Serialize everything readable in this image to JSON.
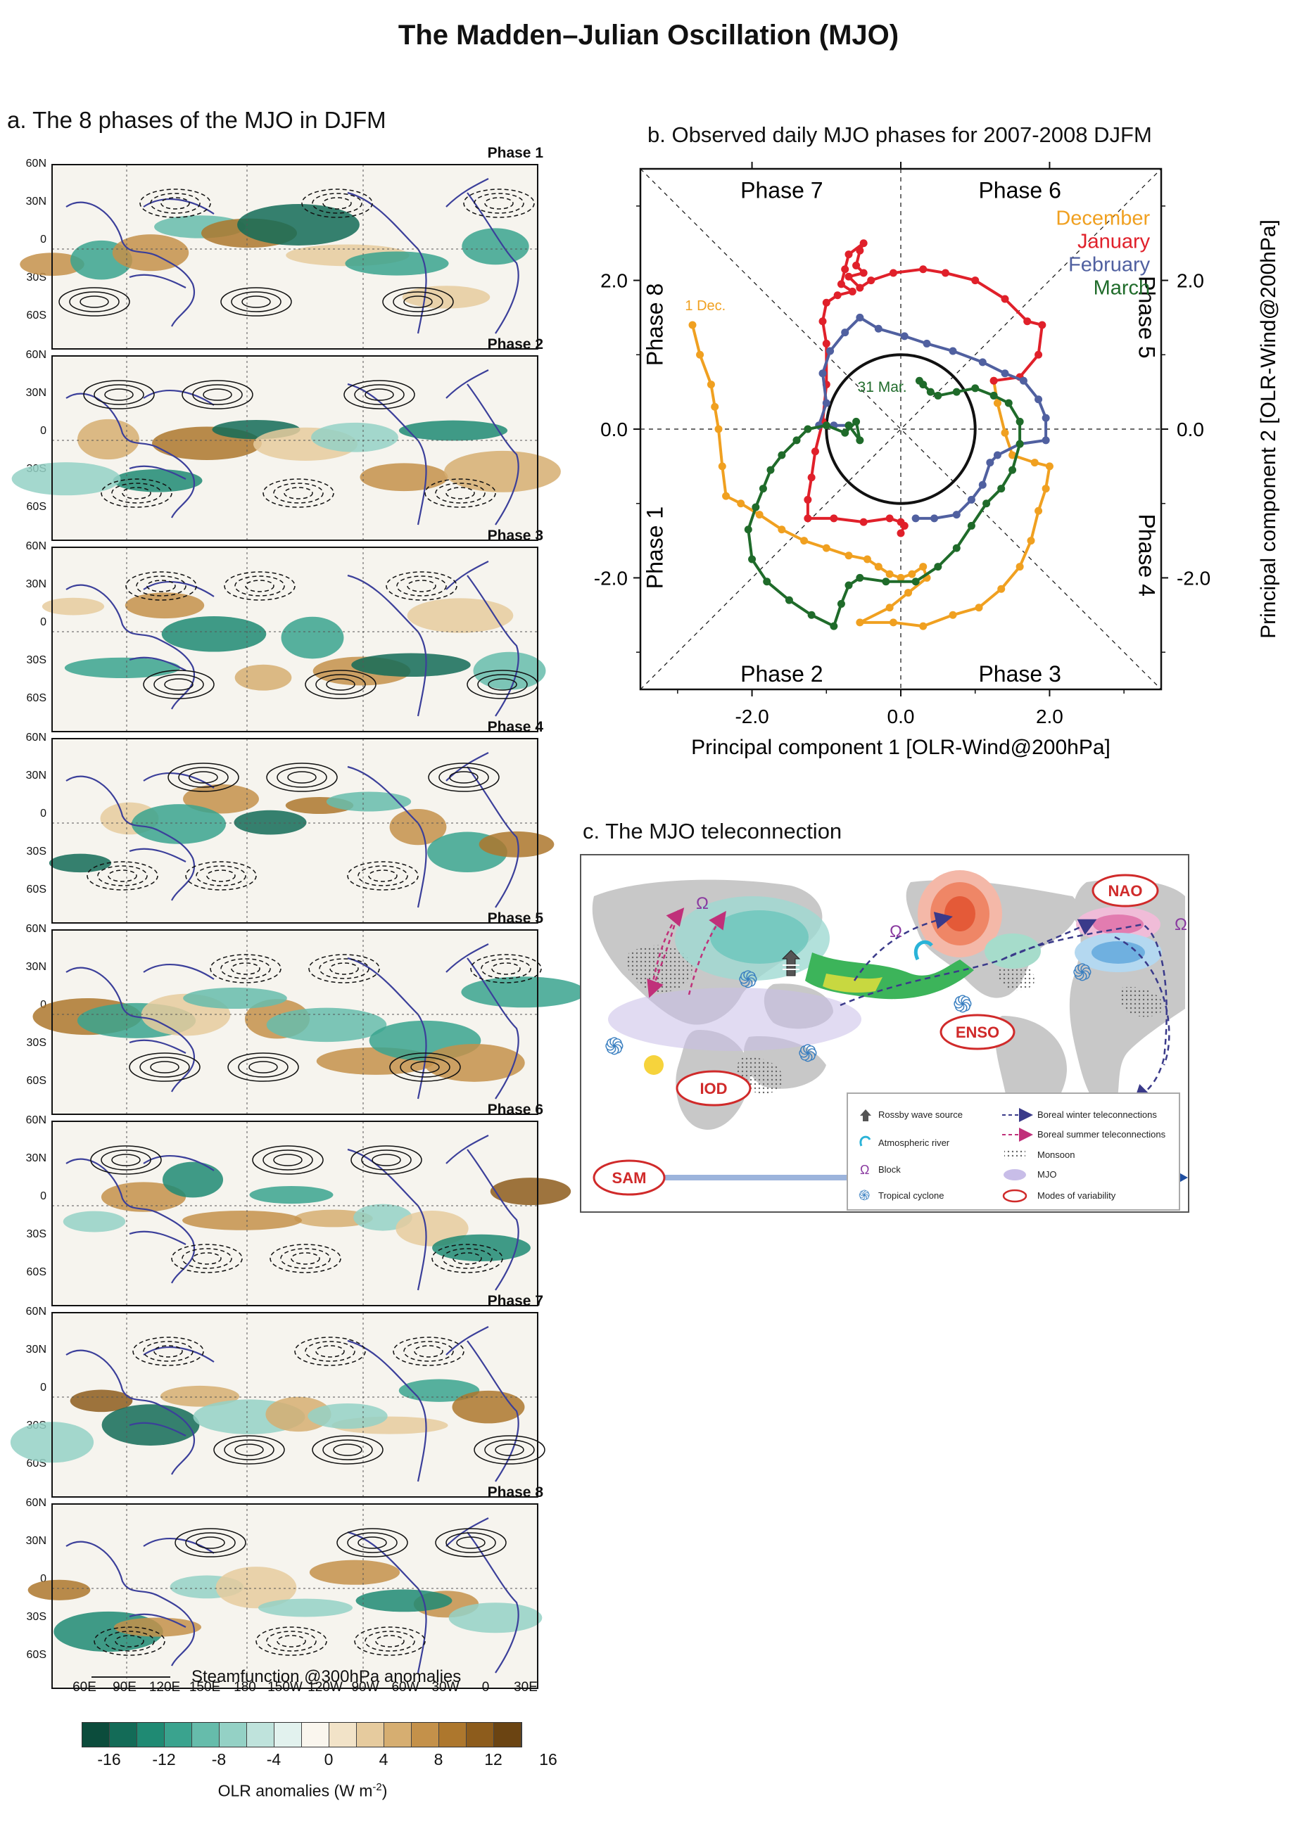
{
  "title": "The Madden–Julian Oscillation (MJO)",
  "panel_a": {
    "title": "a. The 8 phases of the MJO in DJFM",
    "phases": [
      "Phase 1",
      "Phase 2",
      "Phase 3",
      "Phase 4",
      "Phase 5",
      "Phase 6",
      "Phase 7",
      "Phase 8"
    ],
    "lat_labels": [
      "60N",
      "30N",
      "0",
      "30S",
      "60S"
    ],
    "lon_labels": [
      "60E",
      "90E",
      "120E",
      "150E",
      "180",
      "150W",
      "120W",
      "90W",
      "60W",
      "30W",
      "0",
      "30E"
    ],
    "contour_legend": "Steamfunction @300hPa anomalies",
    "colorbar": {
      "ticks": [
        "-16",
        "-12",
        "-8",
        "-4",
        "0",
        "4",
        "8",
        "12",
        "16"
      ],
      "label": "OLR anomalies (W m",
      "label_sup": "-2",
      "label_end": ")",
      "colors": [
        "#0c4c3c",
        "#136b57",
        "#1f8a73",
        "#3aa38e",
        "#66bcab",
        "#94d1c5",
        "#bfe3dc",
        "#e2f2ee",
        "#faf6ee",
        "#f2e3c8",
        "#e6cb9e",
        "#d6ae71",
        "#c4914a",
        "#ad772d",
        "#8d5c1c",
        "#6b4412"
      ]
    }
  },
  "chart_data": {
    "type": "line",
    "title": "b. Observed daily MJO phases for 2007-2008 DJFM",
    "xlabel": "Principal component 1 [OLR-Wind@200hPa]",
    "ylabel": "Principal component 2 [OLR-Wind@200hPa]",
    "xlim": [
      -3.5,
      3.5
    ],
    "ylim": [
      -3.5,
      3.5
    ],
    "xticks": [
      "-2.0",
      "0.0",
      "2.0"
    ],
    "yticks": [
      "-2.0",
      "0.0",
      "2.0"
    ],
    "phase_labels": [
      "Phase 1",
      "Phase 2",
      "Phase 3",
      "Phase 4",
      "Phase 5",
      "Phase 6",
      "Phase 7",
      "Phase 8"
    ],
    "annotations": [
      "1 Dec.",
      "31 Mar."
    ],
    "circle_radius": 1.0,
    "series": [
      {
        "name": "December",
        "color": "#f0a020",
        "points": [
          [
            -2.8,
            1.4
          ],
          [
            -2.7,
            1.0
          ],
          [
            -2.55,
            0.6
          ],
          [
            -2.5,
            0.3
          ],
          [
            -2.45,
            0.0
          ],
          [
            -2.4,
            -0.5
          ],
          [
            -2.35,
            -0.9
          ],
          [
            -2.15,
            -1.0
          ],
          [
            -1.9,
            -1.15
          ],
          [
            -1.6,
            -1.35
          ],
          [
            -1.3,
            -1.5
          ],
          [
            -1.0,
            -1.6
          ],
          [
            -0.7,
            -1.7
          ],
          [
            -0.45,
            -1.75
          ],
          [
            -0.3,
            -1.85
          ],
          [
            -0.15,
            -1.95
          ],
          [
            0.0,
            -2.0
          ],
          [
            0.15,
            -1.95
          ],
          [
            0.3,
            -1.85
          ],
          [
            0.35,
            -2.0
          ],
          [
            0.1,
            -2.2
          ],
          [
            -0.15,
            -2.4
          ],
          [
            -0.55,
            -2.6
          ],
          [
            -0.1,
            -2.6
          ],
          [
            0.3,
            -2.65
          ],
          [
            0.7,
            -2.5
          ],
          [
            1.05,
            -2.4
          ],
          [
            1.35,
            -2.15
          ],
          [
            1.6,
            -1.85
          ],
          [
            1.75,
            -1.5
          ],
          [
            1.85,
            -1.1
          ],
          [
            1.95,
            -0.8
          ],
          [
            2.0,
            -0.5
          ],
          [
            1.8,
            -0.45
          ],
          [
            1.5,
            -0.35
          ],
          [
            1.4,
            -0.05
          ],
          [
            1.3,
            0.35
          ],
          [
            1.25,
            0.65
          ]
        ]
      },
      {
        "name": "January",
        "color": "#e0202a",
        "points": [
          [
            1.25,
            0.65
          ],
          [
            1.6,
            0.7
          ],
          [
            1.85,
            1.0
          ],
          [
            1.9,
            1.4
          ],
          [
            1.7,
            1.45
          ],
          [
            1.4,
            1.75
          ],
          [
            1.0,
            2.0
          ],
          [
            0.6,
            2.1
          ],
          [
            0.3,
            2.15
          ],
          [
            -0.1,
            2.1
          ],
          [
            -0.4,
            2.0
          ],
          [
            -0.55,
            1.9
          ],
          [
            -0.7,
            2.05
          ],
          [
            -0.5,
            2.1
          ],
          [
            -0.6,
            2.2
          ],
          [
            -0.55,
            2.4
          ],
          [
            -0.5,
            2.5
          ],
          [
            -0.7,
            2.35
          ],
          [
            -0.75,
            2.15
          ],
          [
            -0.8,
            1.95
          ],
          [
            -0.65,
            1.85
          ],
          [
            -0.85,
            1.8
          ],
          [
            -1.0,
            1.7
          ],
          [
            -1.05,
            1.45
          ],
          [
            -1.0,
            1.15
          ],
          [
            -1.0,
            0.6
          ],
          [
            -1.05,
            0.1
          ],
          [
            -1.15,
            -0.3
          ],
          [
            -1.2,
            -0.65
          ],
          [
            -1.25,
            -0.95
          ],
          [
            -1.25,
            -1.2
          ],
          [
            -0.9,
            -1.2
          ],
          [
            -0.5,
            -1.25
          ],
          [
            -0.15,
            -1.2
          ],
          [
            0.0,
            -1.25
          ],
          [
            0.05,
            -1.3
          ],
          [
            0.0,
            -1.4
          ]
        ]
      },
      {
        "name": "February",
        "color": "#5060a0",
        "points": [
          [
            -0.7,
            0.05
          ],
          [
            -0.9,
            0.05
          ],
          [
            -1.1,
            0.05
          ],
          [
            -1.0,
            0.35
          ],
          [
            -1.05,
            0.75
          ],
          [
            -0.95,
            1.05
          ],
          [
            -0.75,
            1.3
          ],
          [
            -0.55,
            1.5
          ],
          [
            -0.3,
            1.35
          ],
          [
            0.05,
            1.25
          ],
          [
            0.35,
            1.15
          ],
          [
            0.7,
            1.05
          ],
          [
            1.1,
            0.9
          ],
          [
            1.4,
            0.75
          ],
          [
            1.65,
            0.65
          ],
          [
            1.85,
            0.4
          ],
          [
            1.95,
            0.15
          ],
          [
            1.95,
            -0.15
          ],
          [
            1.6,
            -0.2
          ],
          [
            1.3,
            -0.35
          ],
          [
            1.2,
            -0.45
          ],
          [
            1.1,
            -0.75
          ],
          [
            0.95,
            -0.95
          ],
          [
            0.75,
            -1.15
          ],
          [
            0.45,
            -1.2
          ],
          [
            0.2,
            -1.2
          ]
        ]
      },
      {
        "name": "March",
        "color": "#1f6b2a",
        "points": [
          [
            0.25,
            0.65
          ],
          [
            0.3,
            0.6
          ],
          [
            0.4,
            0.5
          ],
          [
            0.5,
            0.45
          ],
          [
            0.75,
            0.5
          ],
          [
            1.0,
            0.55
          ],
          [
            1.25,
            0.45
          ],
          [
            1.45,
            0.35
          ],
          [
            1.6,
            0.1
          ],
          [
            1.6,
            -0.2
          ],
          [
            1.5,
            -0.55
          ],
          [
            1.35,
            -0.8
          ],
          [
            1.15,
            -1.0
          ],
          [
            0.95,
            -1.3
          ],
          [
            0.75,
            -1.6
          ],
          [
            0.5,
            -1.85
          ],
          [
            0.2,
            -2.05
          ],
          [
            -0.2,
            -2.05
          ],
          [
            -0.55,
            -2.0
          ],
          [
            -0.7,
            -2.1
          ],
          [
            -0.8,
            -2.35
          ],
          [
            -0.9,
            -2.65
          ],
          [
            -1.2,
            -2.5
          ],
          [
            -1.5,
            -2.3
          ],
          [
            -1.8,
            -2.05
          ],
          [
            -2.0,
            -1.75
          ],
          [
            -2.05,
            -1.35
          ],
          [
            -1.95,
            -1.05
          ],
          [
            -1.85,
            -0.8
          ],
          [
            -1.75,
            -0.55
          ],
          [
            -1.6,
            -0.35
          ],
          [
            -1.4,
            -0.15
          ],
          [
            -1.25,
            0.0
          ],
          [
            -1.0,
            0.05
          ],
          [
            -0.75,
            -0.05
          ],
          [
            -0.6,
            0.1
          ],
          [
            -0.55,
            -0.15
          ],
          [
            -0.7,
            0.05
          ]
        ]
      }
    ]
  },
  "panel_c": {
    "title": "c. The MJO teleconnection",
    "modes": [
      "NAO",
      "ENSO",
      "IOD",
      "SAM"
    ],
    "omega": "Ω",
    "legend": {
      "rossby": "Rossby wave source",
      "river": "Atmospheric river",
      "block": "Block",
      "cyclone": "Tropical cyclone",
      "winter": "Boreal winter teleconnections",
      "summer": "Boreal summer teleconnections",
      "monsoon": "Monsoon",
      "mjo": "MJO",
      "modes": "Modes of variability"
    }
  }
}
